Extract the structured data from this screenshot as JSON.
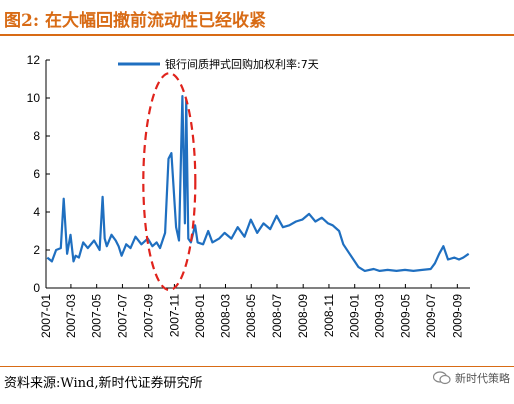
{
  "header": {
    "figure_title": "图2:   在大幅回撤前流动性已经收紧"
  },
  "footer": {
    "source": "资料来源:Wind,新时代证券研究所",
    "watermark": "新时代策略"
  },
  "colors": {
    "accent": "#d86b15",
    "series": "#1f6fc0",
    "highlight": "#e0231c"
  },
  "chart_data": {
    "type": "line",
    "ylim": [
      0,
      12
    ],
    "yticks": [
      "0",
      "2",
      "4",
      "6",
      "8",
      "10",
      "12"
    ],
    "xticks": [
      "2007-01",
      "2007-03",
      "2007-05",
      "2007-07",
      "2007-09",
      "2007-11",
      "2008-01",
      "2008-03",
      "2008-05",
      "2008-07",
      "2008-09",
      "2008-11",
      "2009-01",
      "2009-03",
      "2009-05",
      "2009-07",
      "2009-09"
    ],
    "legend_position": "top-right",
    "grid": false,
    "series": [
      {
        "name": "银行间质押式回购加权利率:7天",
        "x": [
          "2007-01-04",
          "2007-01-15",
          "2007-01-25",
          "2007-02-05",
          "2007-02-12",
          "2007-02-20",
          "2007-02-28",
          "2007-03-07",
          "2007-03-12",
          "2007-03-20",
          "2007-03-30",
          "2007-04-10",
          "2007-04-25",
          "2007-05-08",
          "2007-05-15",
          "2007-05-20",
          "2007-05-25",
          "2007-06-05",
          "2007-06-15",
          "2007-06-22",
          "2007-06-29",
          "2007-07-10",
          "2007-07-20",
          "2007-08-01",
          "2007-08-15",
          "2007-08-30",
          "2007-09-10",
          "2007-09-20",
          "2007-09-28",
          "2007-10-10",
          "2007-10-18",
          "2007-10-25",
          "2007-11-05",
          "2007-11-12",
          "2007-11-20",
          "2007-11-26",
          "2007-11-29",
          "2007-12-04",
          "2007-12-10",
          "2007-12-20",
          "2007-12-26",
          "2008-01-08",
          "2008-01-20",
          "2008-01-30",
          "2008-02-15",
          "2008-02-28",
          "2008-03-15",
          "2008-03-30",
          "2008-04-15",
          "2008-04-30",
          "2008-05-15",
          "2008-05-30",
          "2008-06-15",
          "2008-06-30",
          "2008-07-15",
          "2008-07-30",
          "2008-08-15",
          "2008-08-30",
          "2008-09-15",
          "2008-09-30",
          "2008-10-15",
          "2008-10-30",
          "2008-11-10",
          "2008-11-25",
          "2008-12-05",
          "2008-12-20",
          "2009-01-10",
          "2009-01-25",
          "2009-02-15",
          "2009-03-01",
          "2009-03-20",
          "2009-04-10",
          "2009-04-30",
          "2009-05-20",
          "2009-06-10",
          "2009-06-30",
          "2009-07-10",
          "2009-07-20",
          "2009-07-30",
          "2009-08-10",
          "2009-08-25",
          "2009-09-05",
          "2009-09-15",
          "2009-09-28"
        ],
        "y": [
          1.6,
          1.4,
          2.0,
          2.1,
          4.7,
          1.8,
          2.8,
          1.4,
          1.7,
          1.6,
          2.4,
          2.1,
          2.5,
          2.0,
          4.8,
          2.6,
          2.2,
          2.8,
          2.5,
          2.2,
          1.7,
          2.3,
          2.1,
          2.7,
          2.3,
          2.6,
          2.2,
          2.4,
          2.1,
          2.9,
          6.8,
          7.1,
          3.2,
          2.5,
          10.1,
          3.4,
          9.9,
          2.6,
          2.4,
          3.3,
          2.4,
          2.3,
          3.0,
          2.4,
          2.6,
          2.9,
          2.6,
          3.2,
          2.7,
          3.6,
          2.9,
          3.4,
          3.1,
          3.8,
          3.2,
          3.3,
          3.5,
          3.6,
          3.9,
          3.5,
          3.7,
          3.4,
          3.3,
          3.0,
          2.3,
          1.8,
          1.1,
          0.9,
          1.0,
          0.9,
          0.95,
          0.9,
          0.95,
          0.9,
          0.95,
          1.0,
          1.3,
          1.8,
          2.2,
          1.5,
          1.6,
          1.5,
          1.6,
          1.8
        ]
      }
    ]
  }
}
